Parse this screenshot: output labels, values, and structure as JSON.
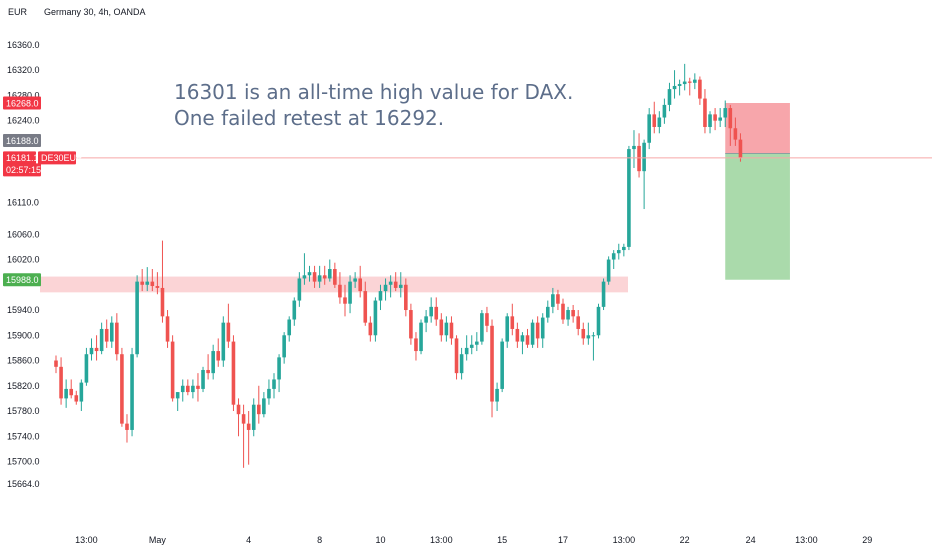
{
  "header": {
    "currency": "EUR",
    "symbol_title": "Germany 30, 4h, OANDA"
  },
  "annotation": {
    "line1": "16301 is an all-time high value for DAX.",
    "line2": "One failed retest at 16292."
  },
  "badges": {
    "stop": "16268.0",
    "prev_close": "16188.0",
    "last_price": "16181.1",
    "countdown": "02:57:15",
    "instrument": "DE30EUR",
    "target": "15988.0"
  },
  "colors": {
    "up": "#26a69a",
    "down": "#ef5350",
    "price_line": "#f7a8a8",
    "zone": "#fbd4d6",
    "risk": "#f7a1a6",
    "reward": "#a5d8a7",
    "badge_red": "#f23645",
    "badge_gray": "#787b86",
    "badge_green": "#4caf50"
  },
  "chart_data": {
    "type": "candlestick",
    "ylim": [
      15620,
      16390
    ],
    "y_ticks": [
      "16360.0",
      "16320.0",
      "16280.0",
      "16240.0",
      "16110.0",
      "16060.0",
      "16020.0",
      "15940.0",
      "15900.0",
      "15860.0",
      "15820.0",
      "15780.0",
      "15740.0",
      "15700.0",
      "15664.0"
    ],
    "y_tick_values": [
      16360,
      16320,
      16280,
      16240,
      16110,
      16060,
      16020,
      15940,
      15900,
      15860,
      15820,
      15780,
      15740,
      15700,
      15664
    ],
    "x_ticks": [
      "13:00",
      "May",
      "4",
      "8",
      "10",
      "13:00",
      "15",
      "17",
      "13:00",
      "22",
      "24",
      "13:00",
      "29"
    ],
    "x_tick_index": [
      6,
      20,
      38,
      52,
      64,
      76,
      88,
      100,
      112,
      124,
      137,
      148,
      160
    ],
    "resistance_zone": [
      15968,
      15993
    ],
    "last_price": 16181.1,
    "position": {
      "entry": 16188,
      "stop": 16268,
      "target": 15988,
      "start_index": 132,
      "end_index": 142
    },
    "candles": [
      [
        15860,
        15868,
        15840,
        15850
      ],
      [
        15850,
        15865,
        15790,
        15800
      ],
      [
        15800,
        15830,
        15785,
        15815
      ],
      [
        15815,
        15830,
        15800,
        15805
      ],
      [
        15805,
        15812,
        15790,
        15795
      ],
      [
        15795,
        15830,
        15780,
        15825
      ],
      [
        15825,
        15880,
        15820,
        15870
      ],
      [
        15870,
        15895,
        15860,
        15880
      ],
      [
        15880,
        15900,
        15860,
        15875
      ],
      [
        15875,
        15920,
        15870,
        15910
      ],
      [
        15910,
        15925,
        15880,
        15890
      ],
      [
        15890,
        15930,
        15880,
        15920
      ],
      [
        15920,
        15935,
        15860,
        15870
      ],
      [
        15870,
        15880,
        15755,
        15760
      ],
      [
        15760,
        15775,
        15730,
        15750
      ],
      [
        15750,
        15880,
        15740,
        15870
      ],
      [
        15870,
        15995,
        15865,
        15985
      ],
      [
        15985,
        16005,
        15970,
        15980
      ],
      [
        15980,
        16008,
        15970,
        15985
      ],
      [
        15985,
        16005,
        15970,
        15978
      ],
      [
        15978,
        16000,
        15965,
        15975
      ],
      [
        15975,
        16050,
        15920,
        15930
      ],
      [
        15930,
        15940,
        15880,
        15890
      ],
      [
        15890,
        15900,
        15795,
        15800
      ],
      [
        15800,
        15810,
        15780,
        15810
      ],
      [
        15810,
        15830,
        15795,
        15820
      ],
      [
        15820,
        15830,
        15805,
        15810
      ],
      [
        15810,
        15830,
        15800,
        15820
      ],
      [
        15820,
        15840,
        15795,
        15815
      ],
      [
        15815,
        15850,
        15810,
        15845
      ],
      [
        15845,
        15870,
        15830,
        15840
      ],
      [
        15840,
        15885,
        15830,
        15875
      ],
      [
        15875,
        15895,
        15850,
        15860
      ],
      [
        15860,
        15930,
        15850,
        15920
      ],
      [
        15920,
        15950,
        15880,
        15890
      ],
      [
        15890,
        15900,
        15780,
        15790
      ],
      [
        15790,
        15800,
        15740,
        15775
      ],
      [
        15775,
        15790,
        15690,
        15760
      ],
      [
        15760,
        15780,
        15695,
        15750
      ],
      [
        15750,
        15800,
        15740,
        15790
      ],
      [
        15790,
        15820,
        15760,
        15775
      ],
      [
        15775,
        15810,
        15770,
        15800
      ],
      [
        15800,
        15830,
        15790,
        15815
      ],
      [
        15815,
        15840,
        15800,
        15830
      ],
      [
        15830,
        15870,
        15810,
        15865
      ],
      [
        15865,
        15905,
        15855,
        15900
      ],
      [
        15900,
        15930,
        15890,
        15925
      ],
      [
        15925,
        15960,
        15915,
        15955
      ],
      [
        15955,
        16000,
        15945,
        15990
      ],
      [
        15990,
        16030,
        15980,
        15995
      ],
      [
        15995,
        16010,
        15985,
        16000
      ],
      [
        16000,
        16010,
        15975,
        15985
      ],
      [
        15985,
        16010,
        15975,
        15995
      ],
      [
        15995,
        16010,
        15980,
        15990
      ],
      [
        15990,
        16020,
        15985,
        16005
      ],
      [
        16005,
        16015,
        15975,
        15980
      ],
      [
        15980,
        16000,
        15950,
        15960
      ],
      [
        15960,
        15980,
        15930,
        15950
      ],
      [
        15950,
        15995,
        15935,
        15985
      ],
      [
        15985,
        16000,
        15975,
        15990
      ],
      [
        15990,
        16010,
        15960,
        15970
      ],
      [
        15970,
        15985,
        15915,
        15920
      ],
      [
        15920,
        15930,
        15890,
        15900
      ],
      [
        15900,
        15960,
        15890,
        15955
      ],
      [
        15955,
        15980,
        15940,
        15970
      ],
      [
        15970,
        15990,
        15955,
        15980
      ],
      [
        15980,
        15995,
        15960,
        15985
      ],
      [
        15985,
        16000,
        15970,
        15975
      ],
      [
        15975,
        16000,
        15960,
        15980
      ],
      [
        15980,
        15990,
        15930,
        15940
      ],
      [
        15940,
        15950,
        15885,
        15895
      ],
      [
        15895,
        15905,
        15860,
        15875
      ],
      [
        15875,
        15925,
        15870,
        15920
      ],
      [
        15920,
        15940,
        15905,
        15930
      ],
      [
        15930,
        15960,
        15920,
        15945
      ],
      [
        15945,
        15960,
        15915,
        15925
      ],
      [
        15925,
        15935,
        15890,
        15900
      ],
      [
        15900,
        15930,
        15890,
        15920
      ],
      [
        15920,
        15930,
        15885,
        15895
      ],
      [
        15895,
        15900,
        15830,
        15840
      ],
      [
        15840,
        15880,
        15830,
        15870
      ],
      [
        15870,
        15900,
        15860,
        15880
      ],
      [
        15880,
        15900,
        15870,
        15885
      ],
      [
        15885,
        15905,
        15875,
        15890
      ],
      [
        15890,
        15940,
        15885,
        15935
      ],
      [
        15935,
        15945,
        15905,
        15915
      ],
      [
        15915,
        15925,
        15770,
        15795
      ],
      [
        15795,
        15825,
        15780,
        15815
      ],
      [
        15815,
        15895,
        15810,
        15890
      ],
      [
        15890,
        15935,
        15880,
        15930
      ],
      [
        15930,
        15950,
        15900,
        15910
      ],
      [
        15910,
        15920,
        15880,
        15890
      ],
      [
        15890,
        15905,
        15870,
        15900
      ],
      [
        15900,
        15910,
        15880,
        15885
      ],
      [
        15885,
        15925,
        15880,
        15920
      ],
      [
        15920,
        15930,
        15880,
        15895
      ],
      [
        15895,
        15935,
        15880,
        15928
      ],
      [
        15928,
        15955,
        15920,
        15945
      ],
      [
        15945,
        15975,
        15935,
        15965
      ],
      [
        15965,
        15972,
        15940,
        15950
      ],
      [
        15950,
        15958,
        15918,
        15925
      ],
      [
        15925,
        15945,
        15915,
        15940
      ],
      [
        15940,
        15948,
        15920,
        15930
      ],
      [
        15930,
        15940,
        15900,
        15910
      ],
      [
        15910,
        15920,
        15885,
        15895
      ],
      [
        15895,
        15920,
        15885,
        15900
      ],
      [
        15900,
        15905,
        15860,
        15900
      ],
      [
        15900,
        15950,
        15895,
        15945
      ],
      [
        15945,
        15990,
        15940,
        15985
      ],
      [
        15985,
        16025,
        15980,
        16020
      ],
      [
        16020,
        16035,
        16005,
        16030
      ],
      [
        16030,
        16045,
        16020,
        16035
      ],
      [
        16035,
        16045,
        16025,
        16040
      ],
      [
        16040,
        16200,
        16035,
        16195
      ],
      [
        16195,
        16225,
        16165,
        16200
      ],
      [
        16200,
        16220,
        16150,
        16160
      ],
      [
        16160,
        16210,
        16100,
        16205
      ],
      [
        16205,
        16260,
        16195,
        16250
      ],
      [
        16250,
        16270,
        16220,
        16230
      ],
      [
        16230,
        16255,
        16220,
        16245
      ],
      [
        16245,
        16275,
        16235,
        16265
      ],
      [
        16265,
        16300,
        16255,
        16290
      ],
      [
        16290,
        16320,
        16275,
        16295
      ],
      [
        16295,
        16305,
        16280,
        16298
      ],
      [
        16298,
        16330,
        16288,
        16302
      ],
      [
        16302,
        16308,
        16280,
        16300
      ],
      [
        16300,
        16315,
        16290,
        16305
      ],
      [
        16305,
        16310,
        16265,
        16275
      ],
      [
        16275,
        16290,
        16220,
        16230
      ],
      [
        16230,
        16255,
        16220,
        16250
      ],
      [
        16250,
        16260,
        16225,
        16240
      ],
      [
        16240,
        16260,
        16230,
        16245
      ],
      [
        16245,
        16272,
        16230,
        16260
      ],
      [
        16260,
        16265,
        16200,
        16228
      ],
      [
        16228,
        16245,
        16200,
        16210
      ],
      [
        16210,
        16220,
        16175,
        16181
      ]
    ]
  }
}
